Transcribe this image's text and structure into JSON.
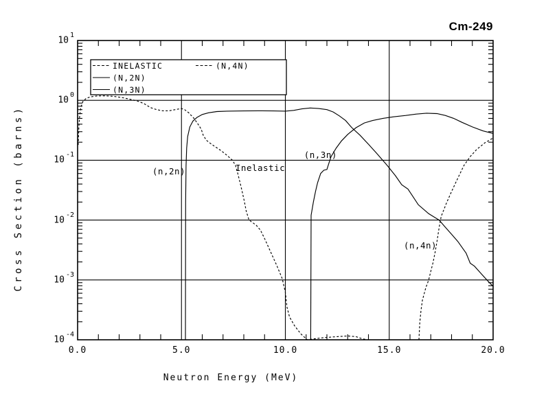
{
  "window": {
    "title": "Cm-249"
  },
  "chart_data": {
    "type": "line",
    "title": "Cm-249",
    "xlabel": "Neutron Energy (MeV)",
    "ylabel": "Cross Section (barns)",
    "x_axis": {
      "min": 0,
      "max": 20,
      "major_ticks": [
        0,
        5,
        10,
        15,
        20
      ],
      "tick_labels": [
        "0.0",
        "5.0",
        "10.0",
        "15.0",
        "20.0"
      ],
      "minor_tick_step": 1
    },
    "y_axis": {
      "scale": "log",
      "min": 0.0001,
      "max": 10,
      "decade_exponents": [
        1,
        0,
        -1,
        -2,
        -3,
        -4
      ]
    },
    "grid": {
      "vertical_at": [
        5,
        10,
        15
      ],
      "horizontal_at_exponents": [
        0,
        -1,
        -2,
        -3
      ]
    },
    "legend": {
      "entries": [
        {
          "label": "INELASTIC",
          "style": "dashed"
        },
        {
          "label": "(N,2N)",
          "style": "solid"
        },
        {
          "label": "(N,3N)",
          "style": "solid"
        },
        {
          "label": "(N,4N)",
          "style": "dashed"
        }
      ]
    },
    "annotations": [
      {
        "text": "(n,2n)",
        "x": 3.6,
        "y": 0.064
      },
      {
        "text": "Inelastic",
        "x": 7.6,
        "y": 0.073
      },
      {
        "text": "(n,3n)",
        "x": 10.9,
        "y": 0.121
      },
      {
        "text": "(n,4n)",
        "x": 15.7,
        "y": 0.0037
      }
    ],
    "series": [
      {
        "name": "INELASTIC",
        "style": "dashed",
        "points": [
          [
            0.03,
            0.18
          ],
          [
            0.06,
            0.35
          ],
          [
            0.1,
            0.55
          ],
          [
            0.15,
            0.75
          ],
          [
            0.25,
            0.95
          ],
          [
            0.4,
            1.07
          ],
          [
            0.6,
            1.14
          ],
          [
            0.9,
            1.18
          ],
          [
            1.3,
            1.19
          ],
          [
            1.7,
            1.17
          ],
          [
            2.1,
            1.12
          ],
          [
            2.5,
            1.05
          ],
          [
            2.9,
            0.97
          ],
          [
            3.2,
            0.88
          ],
          [
            3.5,
            0.76
          ],
          [
            3.8,
            0.7
          ],
          [
            4.1,
            0.67
          ],
          [
            4.4,
            0.67
          ],
          [
            4.7,
            0.7
          ],
          [
            5.0,
            0.73
          ],
          [
            5.15,
            0.7
          ],
          [
            5.35,
            0.62
          ],
          [
            5.6,
            0.5
          ],
          [
            5.8,
            0.4
          ],
          [
            5.95,
            0.33
          ],
          [
            6.05,
            0.26
          ],
          [
            6.2,
            0.215
          ],
          [
            6.4,
            0.19
          ],
          [
            6.6,
            0.17
          ],
          [
            6.9,
            0.145
          ],
          [
            7.2,
            0.12
          ],
          [
            7.45,
            0.1
          ],
          [
            7.6,
            0.082
          ],
          [
            7.7,
            0.062
          ],
          [
            7.82,
            0.042
          ],
          [
            7.92,
            0.03
          ],
          [
            8.02,
            0.021
          ],
          [
            8.12,
            0.014
          ],
          [
            8.25,
            0.01
          ],
          [
            8.4,
            0.0092
          ],
          [
            8.6,
            0.0082
          ],
          [
            8.8,
            0.0068
          ],
          [
            9.0,
            0.0049
          ],
          [
            9.3,
            0.0029
          ],
          [
            9.6,
            0.0017
          ],
          [
            9.85,
            0.00105
          ],
          [
            10.0,
            0.00062
          ],
          [
            10.08,
            0.00035
          ],
          [
            10.2,
            0.00024
          ],
          [
            10.45,
            0.00017
          ],
          [
            10.75,
            0.000125
          ],
          [
            11.05,
            0.0001
          ],
          [
            11.4,
            0.000104
          ],
          [
            11.9,
            0.000109
          ],
          [
            12.5,
            0.000113
          ],
          [
            13.0,
            0.000116
          ],
          [
            13.4,
            0.000113
          ],
          [
            13.7,
            0.000104
          ],
          [
            13.95,
            0.0001
          ]
        ]
      },
      {
        "name": "(N,2N)",
        "style": "solid",
        "points": [
          [
            5.19,
            0.0001
          ],
          [
            5.2,
            0.02
          ],
          [
            5.22,
            0.08
          ],
          [
            5.25,
            0.16
          ],
          [
            5.3,
            0.25
          ],
          [
            5.4,
            0.36
          ],
          [
            5.55,
            0.45
          ],
          [
            5.75,
            0.52
          ],
          [
            6.0,
            0.58
          ],
          [
            6.3,
            0.62
          ],
          [
            6.7,
            0.65
          ],
          [
            7.2,
            0.66
          ],
          [
            8.0,
            0.665
          ],
          [
            8.7,
            0.67
          ],
          [
            9.4,
            0.665
          ],
          [
            10.0,
            0.66
          ],
          [
            10.4,
            0.68
          ],
          [
            10.8,
            0.72
          ],
          [
            11.2,
            0.745
          ],
          [
            11.6,
            0.73
          ],
          [
            12.0,
            0.7
          ],
          [
            12.3,
            0.64
          ],
          [
            12.6,
            0.55
          ],
          [
            12.9,
            0.46
          ],
          [
            13.2,
            0.35
          ],
          [
            13.6,
            0.26
          ],
          [
            14.0,
            0.185
          ],
          [
            14.4,
            0.13
          ],
          [
            14.9,
            0.082
          ],
          [
            15.3,
            0.055
          ],
          [
            15.6,
            0.039
          ],
          [
            15.9,
            0.033
          ],
          [
            16.1,
            0.026
          ],
          [
            16.4,
            0.018
          ],
          [
            16.9,
            0.0128
          ],
          [
            17.4,
            0.01
          ],
          [
            17.7,
            0.0076
          ],
          [
            18.0,
            0.0058
          ],
          [
            18.3,
            0.0044
          ],
          [
            18.7,
            0.0028
          ],
          [
            18.9,
            0.0019
          ],
          [
            19.1,
            0.0017
          ],
          [
            19.4,
            0.0013
          ],
          [
            19.7,
            0.001
          ],
          [
            20.0,
            0.00078
          ]
        ]
      },
      {
        "name": "(N,3N)",
        "style": "solid",
        "points": [
          [
            11.22,
            0.0001
          ],
          [
            11.24,
            0.012
          ],
          [
            11.35,
            0.02
          ],
          [
            11.45,
            0.03
          ],
          [
            11.55,
            0.042
          ],
          [
            11.7,
            0.06
          ],
          [
            11.85,
            0.068
          ],
          [
            12.0,
            0.07
          ],
          [
            12.1,
            0.09
          ],
          [
            12.2,
            0.115
          ],
          [
            12.45,
            0.16
          ],
          [
            12.7,
            0.21
          ],
          [
            13.0,
            0.27
          ],
          [
            13.4,
            0.35
          ],
          [
            13.8,
            0.42
          ],
          [
            14.2,
            0.46
          ],
          [
            14.7,
            0.5
          ],
          [
            15.2,
            0.53
          ],
          [
            15.8,
            0.56
          ],
          [
            16.3,
            0.59
          ],
          [
            16.8,
            0.61
          ],
          [
            17.3,
            0.6
          ],
          [
            17.7,
            0.56
          ],
          [
            18.1,
            0.5
          ],
          [
            18.5,
            0.43
          ],
          [
            19.0,
            0.36
          ],
          [
            19.5,
            0.31
          ],
          [
            20.0,
            0.28
          ]
        ]
      },
      {
        "name": "(N,4N)",
        "style": "dashed",
        "points": [
          [
            16.43,
            0.0001
          ],
          [
            16.47,
            0.00019
          ],
          [
            16.53,
            0.00031
          ],
          [
            16.6,
            0.00046
          ],
          [
            16.76,
            0.00074
          ],
          [
            16.9,
            0.001
          ],
          [
            17.0,
            0.0014
          ],
          [
            17.1,
            0.0019
          ],
          [
            17.2,
            0.0028
          ],
          [
            17.3,
            0.0044
          ],
          [
            17.4,
            0.0075
          ],
          [
            17.5,
            0.0115
          ],
          [
            17.75,
            0.019
          ],
          [
            18.0,
            0.03
          ],
          [
            18.3,
            0.05
          ],
          [
            18.6,
            0.082
          ],
          [
            18.9,
            0.115
          ],
          [
            19.2,
            0.15
          ],
          [
            19.6,
            0.195
          ],
          [
            20.0,
            0.235
          ]
        ]
      }
    ]
  },
  "colors": {
    "foreground": "#000000",
    "background": "#ffffff"
  }
}
